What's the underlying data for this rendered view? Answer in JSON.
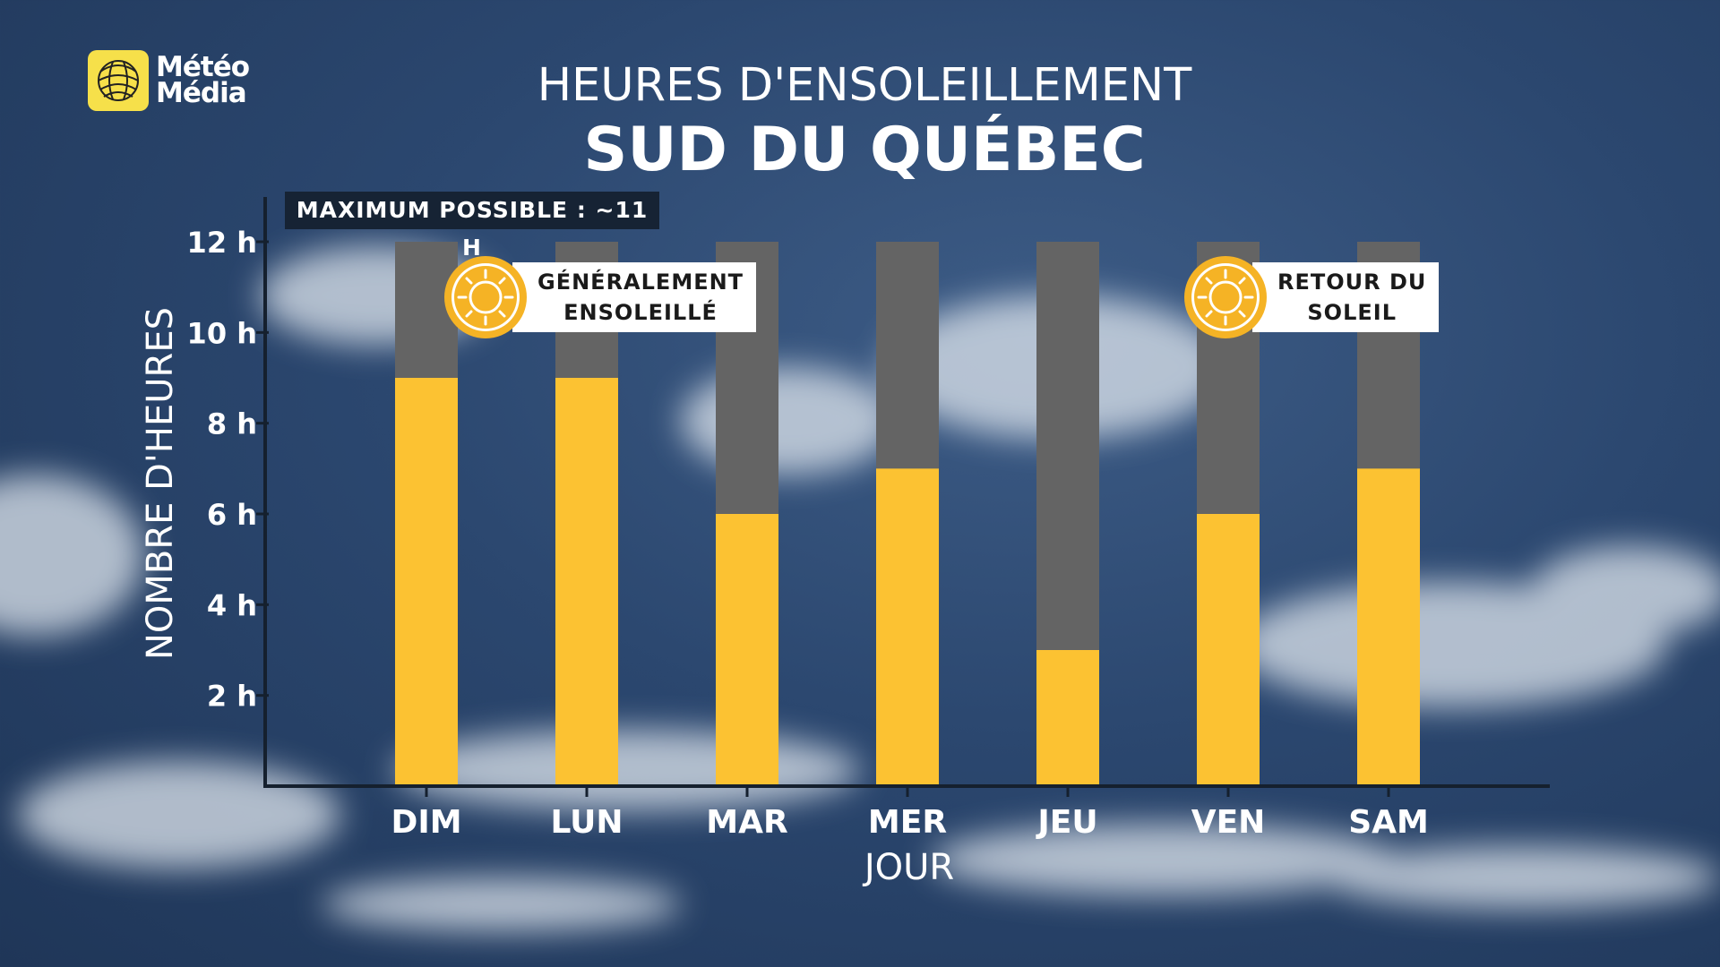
{
  "brand": {
    "logo_line1": "Météo",
    "logo_line2": "Média"
  },
  "header": {
    "supertitle": "HEURES D'ENSOLEILLEMENT",
    "title": "SUD DU QUÉBEC"
  },
  "note": {
    "max_possible": "MAXIMUM POSSIBLE : ~11 H"
  },
  "annotations": {
    "left": {
      "line1": "GÉNÉRALEMENT",
      "line2": "ENSOLEILLÉ",
      "icon": "sun-icon"
    },
    "right": {
      "line1": "RETOUR DU",
      "line2": "SOLEIL",
      "icon": "sun-icon"
    }
  },
  "colors": {
    "sun_bar": "#fcc232",
    "remaining_bar": "#646464",
    "sun_icon": "#f5b325",
    "note_bg": "#162334"
  },
  "chart_data": {
    "type": "bar",
    "xlabel": "JOUR",
    "ylabel": "NOMBRE D'HEURES",
    "categories": [
      "DIM",
      "LUN",
      "MAR",
      "MER",
      "JEU",
      "VEN",
      "SAM"
    ],
    "series": [
      {
        "values": [
          9,
          9,
          6,
          7,
          3,
          6,
          7
        ]
      },
      {
        "values": [
          3,
          3,
          6,
          5,
          9,
          6,
          5
        ]
      }
    ],
    "bar_total": 12,
    "ylim": [
      0,
      12
    ],
    "yticks": [
      2,
      4,
      6,
      8,
      10,
      12
    ],
    "ytick_labels": [
      "2 h",
      "4 h",
      "6 h",
      "8 h",
      "10 h",
      "12 h"
    ],
    "stacked": true,
    "grid": false,
    "legend": "none"
  }
}
